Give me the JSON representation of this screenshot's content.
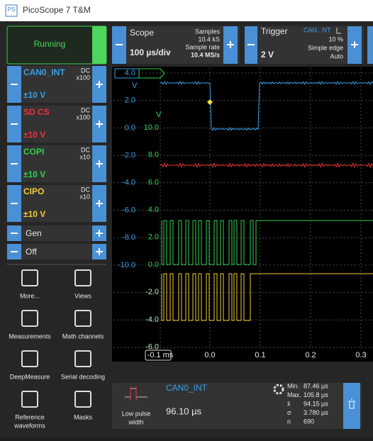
{
  "title_bar": {
    "icon": "PS",
    "title": "PicoScope 7 T&M"
  },
  "toolbar": {
    "run_state": "Running",
    "scope": {
      "label": "Scope",
      "timebase": "100 µs/div",
      "samples_label": "Samples",
      "samples": "10.4 kS",
      "sample_rate_label": "Sample rate",
      "sample_rate": "10.4 MS/s"
    },
    "trigger": {
      "label": "Trigger",
      "level": "2 V",
      "source": "CAN...NT",
      "pre_trigger": "10 %",
      "edge_type": "Simple edge",
      "mode": "Auto"
    }
  },
  "channels": [
    {
      "name": "CAN0_INT",
      "coupling": "DC",
      "probe": "x100",
      "range": "±10 V",
      "color": "#3a9fe6"
    },
    {
      "name": "SD CS",
      "coupling": "DC",
      "probe": "x100",
      "range": "±10 V",
      "color": "#e8343c"
    },
    {
      "name": "COPI",
      "coupling": "DC",
      "probe": "x10",
      "range": "±10 V",
      "color": "#32d14e"
    },
    {
      "name": "CIPO",
      "coupling": "DC",
      "probe": "x10",
      "range": "±10 V",
      "color": "#f2cb3a"
    }
  ],
  "generators": [
    {
      "label": "Gen"
    },
    {
      "label": "Off"
    }
  ],
  "tools": [
    {
      "label": [
        "More..."
      ]
    },
    {
      "label": [
        "Views"
      ]
    },
    {
      "label": [
        "Measurements"
      ]
    },
    {
      "label": [
        "Math channels"
      ]
    },
    {
      "label": [
        "DeepMeasure"
      ]
    },
    {
      "label": [
        "Serial decoding"
      ]
    },
    {
      "label": [
        "Reference",
        "waveforms"
      ]
    },
    {
      "label": [
        "Masks"
      ]
    }
  ],
  "scope_view": {
    "x_axis": [
      "-0.1 ms",
      "0.0",
      "0.1",
      "0.2",
      "0.3"
    ],
    "axis_a": {
      "unit": "V",
      "ticks": [
        "4.0",
        "2.0",
        "0.0",
        "-2.0",
        "-4.0",
        "-6.0",
        "-8.0",
        "-10.0"
      ]
    },
    "axis_b": {
      "unit": "V",
      "ticks": [
        "10.0",
        "8.0",
        "6.0",
        "4.0",
        "2.0",
        "0.0",
        "-2.0",
        "-4.0",
        "-6.0"
      ]
    }
  },
  "measurement": {
    "name": [
      "Low pulse",
      "width"
    ],
    "channel": "CAN0_INT",
    "value": "96.10 µs",
    "stats": [
      {
        "label": "Min.",
        "value": "87.46 µs"
      },
      {
        "label": "Max.",
        "value": "105.8 µs"
      },
      {
        "label": "x̄",
        "value": "94.15 µs"
      },
      {
        "label": "σ",
        "value": "3.780 µs"
      },
      {
        "label": "n",
        "value": "690"
      }
    ]
  }
}
